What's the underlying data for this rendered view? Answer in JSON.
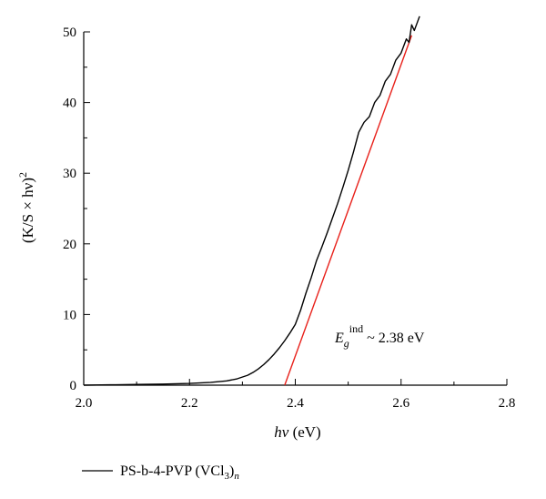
{
  "chart_data": {
    "type": "line",
    "xlabel_main": "hν",
    "xlabel_unit": " (eV)",
    "ylabel_base": "(K/S × hν)",
    "ylabel_sup": "2",
    "xlim": [
      2.0,
      2.8
    ],
    "ylim": [
      0,
      50
    ],
    "xticks": [
      2.0,
      2.2,
      2.4,
      2.6,
      2.8
    ],
    "xtick_labels": [
      "2.0",
      "2.2",
      "2.4",
      "2.6",
      "2.8"
    ],
    "yticks": [
      0,
      10,
      20,
      30,
      40,
      50
    ],
    "ytick_labels": [
      "0",
      "10",
      "20",
      "30",
      "40",
      "50"
    ],
    "grid": false,
    "legend_position": "bottom-left",
    "colors": {
      "data": "#000000",
      "fit": "#e8201a"
    },
    "series": [
      {
        "name": "PS-b-4-PVP (VCl",
        "name_sub": "3",
        "name_suffix": ")",
        "name_sub2": "n",
        "x": [
          2.0,
          2.05,
          2.1,
          2.15,
          2.2,
          2.24,
          2.27,
          2.29,
          2.31,
          2.32,
          2.33,
          2.34,
          2.35,
          2.36,
          2.37,
          2.38,
          2.39,
          2.4,
          2.41,
          2.42,
          2.43,
          2.44,
          2.45,
          2.46,
          2.47,
          2.48,
          2.49,
          2.5,
          2.51,
          2.52,
          2.53,
          2.54,
          2.55,
          2.56,
          2.57,
          2.58,
          2.59,
          2.6,
          2.61,
          2.615,
          2.62,
          2.625,
          2.63,
          2.635
        ],
        "y": [
          0,
          0.05,
          0.1,
          0.15,
          0.25,
          0.4,
          0.6,
          0.9,
          1.4,
          1.8,
          2.3,
          2.9,
          3.6,
          4.4,
          5.3,
          6.3,
          7.4,
          8.6,
          10.6,
          13.0,
          15.2,
          17.6,
          19.5,
          21.5,
          23.6,
          25.7,
          28.0,
          30.4,
          33.0,
          35.8,
          37.2,
          38.0,
          40.0,
          41.0,
          43.0,
          44.0,
          46.0,
          47.0,
          49.0,
          48.5,
          51.0,
          50.2,
          51.2,
          52.2
        ]
      }
    ],
    "fit_line": {
      "x": [
        2.38,
        2.62
      ],
      "y": [
        0,
        49.5
      ]
    },
    "annotation": {
      "E": "E",
      "sub": "g",
      "sup": "ind",
      "text": " ~ 2.38 eV"
    }
  }
}
